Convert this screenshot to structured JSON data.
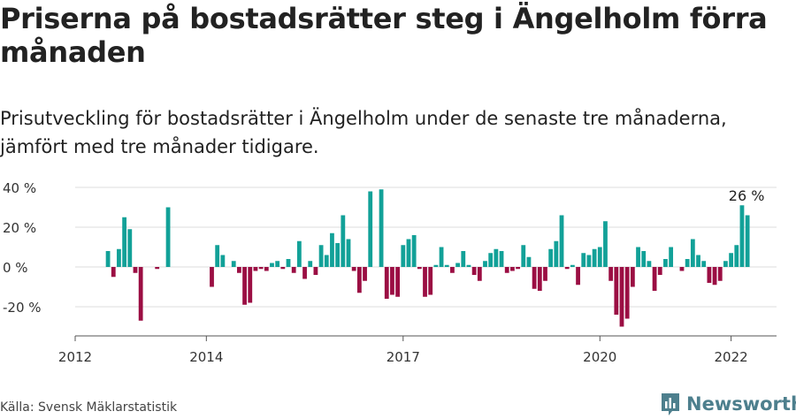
{
  "title": "Priserna på bostadsrätter steg i Ängelholm förra månaden",
  "subtitle": "Prisutveckling för bostadsrätter i Ängelholm under de senaste tre månaderna, jämfört med tre månader tidigare.",
  "source": "Källa: Svensk Mäklarstatistik",
  "brand": {
    "name": "Newsworthy",
    "icon": "newsworthy-logo-icon"
  },
  "colors": {
    "positive": "#12a198",
    "negative": "#9b0e43",
    "grid": "#dddddd",
    "axis": "#555555",
    "brand": "#4d7f8d"
  },
  "chart_data": {
    "type": "bar",
    "title": "Priserna på bostadsrätter steg i Ängelholm förra månaden",
    "xlabel": "",
    "ylabel": "",
    "ylim": [
      -35,
      40
    ],
    "y_ticks": [
      -20,
      0,
      20,
      40
    ],
    "y_tick_labels": [
      "-20 %",
      "0 %",
      "20 %",
      "40 %"
    ],
    "x_ticks": [
      {
        "label": "2012",
        "month_index": 0
      },
      {
        "label": "2014",
        "month_index": 24
      },
      {
        "label": "2017",
        "month_index": 60
      },
      {
        "label": "2020",
        "month_index": 96
      },
      {
        "label": "2022",
        "month_index": 120
      }
    ],
    "x_range": [
      0,
      127
    ],
    "bars": [
      {
        "m": 6,
        "v": 8
      },
      {
        "m": 7,
        "v": -5
      },
      {
        "m": 8,
        "v": 9
      },
      {
        "m": 9,
        "v": 25
      },
      {
        "m": 10,
        "v": 19
      },
      {
        "m": 11,
        "v": -3
      },
      {
        "m": 12,
        "v": -27
      },
      {
        "m": 15,
        "v": -1
      },
      {
        "m": 17,
        "v": 30
      },
      {
        "m": 25,
        "v": -10
      },
      {
        "m": 26,
        "v": 11
      },
      {
        "m": 27,
        "v": 6
      },
      {
        "m": 29,
        "v": 3
      },
      {
        "m": 30,
        "v": -3
      },
      {
        "m": 31,
        "v": -19
      },
      {
        "m": 32,
        "v": -18
      },
      {
        "m": 33,
        "v": -2
      },
      {
        "m": 34,
        "v": -1
      },
      {
        "m": 35,
        "v": -2
      },
      {
        "m": 36,
        "v": 2
      },
      {
        "m": 37,
        "v": 3
      },
      {
        "m": 38,
        "v": -1
      },
      {
        "m": 39,
        "v": 4
      },
      {
        "m": 40,
        "v": -3
      },
      {
        "m": 41,
        "v": 13
      },
      {
        "m": 42,
        "v": -6
      },
      {
        "m": 43,
        "v": 3
      },
      {
        "m": 44,
        "v": -4
      },
      {
        "m": 45,
        "v": 11
      },
      {
        "m": 46,
        "v": 6
      },
      {
        "m": 47,
        "v": 17
      },
      {
        "m": 48,
        "v": 12
      },
      {
        "m": 49,
        "v": 26
      },
      {
        "m": 50,
        "v": 14
      },
      {
        "m": 51,
        "v": -2
      },
      {
        "m": 52,
        "v": -13
      },
      {
        "m": 53,
        "v": -7
      },
      {
        "m": 54,
        "v": 38
      },
      {
        "m": 56,
        "v": 39
      },
      {
        "m": 57,
        "v": -16
      },
      {
        "m": 58,
        "v": -14
      },
      {
        "m": 59,
        "v": -15
      },
      {
        "m": 60,
        "v": 11
      },
      {
        "m": 61,
        "v": 14
      },
      {
        "m": 62,
        "v": 16
      },
      {
        "m": 63,
        "v": -1
      },
      {
        "m": 64,
        "v": -15
      },
      {
        "m": 65,
        "v": -14
      },
      {
        "m": 66,
        "v": 1
      },
      {
        "m": 67,
        "v": 10
      },
      {
        "m": 68,
        "v": 1
      },
      {
        "m": 69,
        "v": -3
      },
      {
        "m": 70,
        "v": 2
      },
      {
        "m": 71,
        "v": 8
      },
      {
        "m": 72,
        "v": 1
      },
      {
        "m": 73,
        "v": -4
      },
      {
        "m": 74,
        "v": -7
      },
      {
        "m": 75,
        "v": 3
      },
      {
        "m": 76,
        "v": 7
      },
      {
        "m": 77,
        "v": 9
      },
      {
        "m": 78,
        "v": 8
      },
      {
        "m": 79,
        "v": -3
      },
      {
        "m": 80,
        "v": -2
      },
      {
        "m": 81,
        "v": -1
      },
      {
        "m": 82,
        "v": 11
      },
      {
        "m": 83,
        "v": 5
      },
      {
        "m": 84,
        "v": -11
      },
      {
        "m": 85,
        "v": -12
      },
      {
        "m": 86,
        "v": -7
      },
      {
        "m": 87,
        "v": 9
      },
      {
        "m": 88,
        "v": 13
      },
      {
        "m": 89,
        "v": 26
      },
      {
        "m": 90,
        "v": -1
      },
      {
        "m": 91,
        "v": 1
      },
      {
        "m": 92,
        "v": -9
      },
      {
        "m": 93,
        "v": 7
      },
      {
        "m": 94,
        "v": 6
      },
      {
        "m": 95,
        "v": 9
      },
      {
        "m": 96,
        "v": 10
      },
      {
        "m": 97,
        "v": 23
      },
      {
        "m": 98,
        "v": -7
      },
      {
        "m": 99,
        "v": -24
      },
      {
        "m": 100,
        "v": -30
      },
      {
        "m": 101,
        "v": -26
      },
      {
        "m": 102,
        "v": -10
      },
      {
        "m": 103,
        "v": 10
      },
      {
        "m": 104,
        "v": 8
      },
      {
        "m": 105,
        "v": 3
      },
      {
        "m": 106,
        "v": -12
      },
      {
        "m": 107,
        "v": -4
      },
      {
        "m": 108,
        "v": 4
      },
      {
        "m": 109,
        "v": 10
      },
      {
        "m": 111,
        "v": -2
      },
      {
        "m": 112,
        "v": 4
      },
      {
        "m": 113,
        "v": 14
      },
      {
        "m": 114,
        "v": 6
      },
      {
        "m": 115,
        "v": 3
      },
      {
        "m": 116,
        "v": -8
      },
      {
        "m": 117,
        "v": -9
      },
      {
        "m": 118,
        "v": -7
      },
      {
        "m": 119,
        "v": 3
      },
      {
        "m": 120,
        "v": 7
      },
      {
        "m": 121,
        "v": 11
      },
      {
        "m": 122,
        "v": 31
      },
      {
        "m": 123,
        "v": 26
      }
    ],
    "annotation": {
      "label": "26 %",
      "month_index": 123,
      "value": 26
    }
  }
}
